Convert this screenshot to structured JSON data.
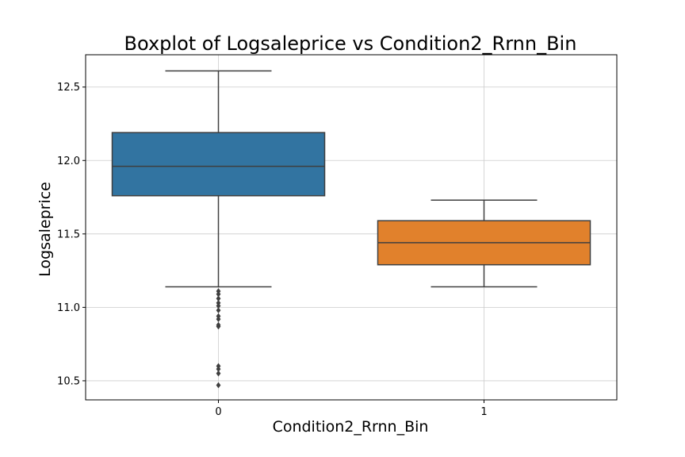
{
  "chart_data": {
    "type": "boxplot",
    "title": "Boxplot of Logsaleprice vs Condition2_Rrnn_Bin",
    "xlabel": "Condition2_Rrnn_Bin",
    "ylabel": "Logsaleprice",
    "categories": [
      "0",
      "1"
    ],
    "ylim": [
      10.37,
      12.72
    ],
    "yticks": [
      "10.5",
      "11.0",
      "11.5",
      "12.0",
      "12.5"
    ],
    "grid": true,
    "boxes": [
      {
        "category": "0",
        "color": "#3274a1",
        "whisker_low": 11.14,
        "q1": 11.76,
        "median": 11.96,
        "q3": 12.19,
        "whisker_high": 12.61,
        "outliers": [
          11.11,
          11.09,
          11.06,
          11.03,
          11.01,
          10.98,
          10.94,
          10.92,
          10.88,
          10.87,
          10.6,
          10.58,
          10.55,
          10.47
        ]
      },
      {
        "category": "1",
        "color": "#e1812c",
        "whisker_low": 11.14,
        "q1": 11.29,
        "median": 11.44,
        "q3": 11.59,
        "whisker_high": 11.73,
        "outliers": []
      }
    ]
  }
}
